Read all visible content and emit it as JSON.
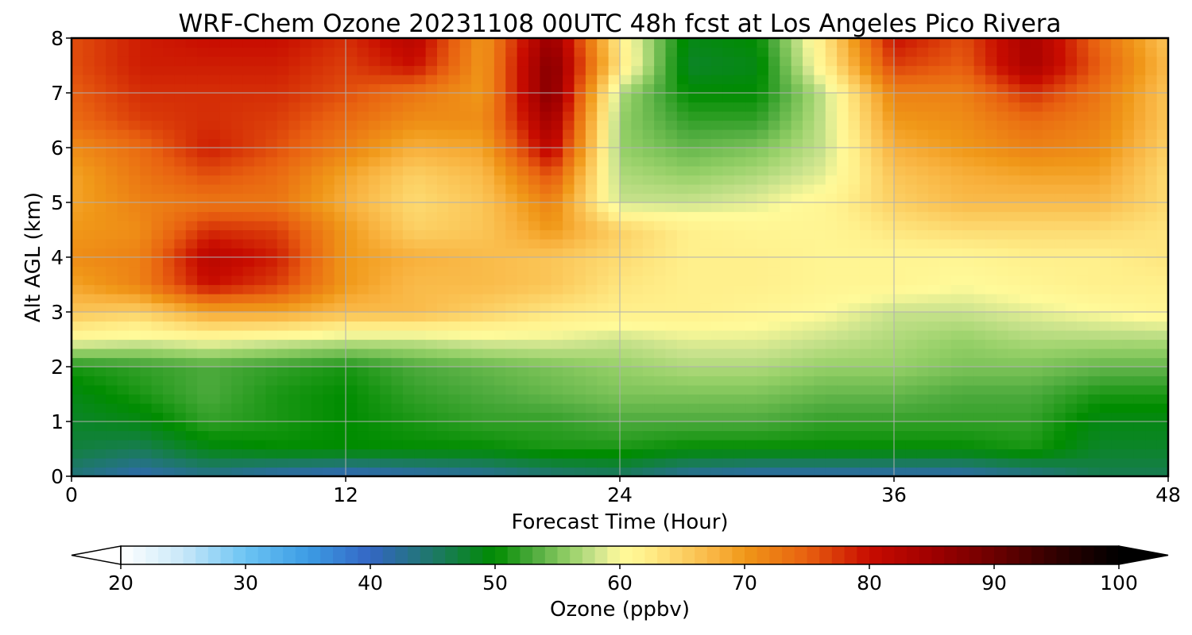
{
  "chart_data": {
    "type": "heatmap",
    "title": "WRF-Chem Ozone  20231108 00UTC 48h fcst at Los Angeles Pico Rivera",
    "xlabel": "Forecast Time (Hour)",
    "ylabel": "Alt AGL (km)",
    "xlim": [
      0,
      48
    ],
    "ylim": [
      0,
      8
    ],
    "xticks": [
      0,
      12,
      24,
      36,
      48
    ],
    "yticks": [
      0,
      1,
      2,
      3,
      4,
      5,
      6,
      7,
      8
    ],
    "grid": true,
    "x": [
      0,
      3,
      6,
      9,
      12,
      15,
      18,
      21,
      24,
      27,
      30,
      33,
      36,
      39,
      42,
      45,
      48
    ],
    "y": [
      0,
      0.5,
      1,
      1.5,
      2,
      2.5,
      3,
      3.5,
      4,
      4.5,
      5,
      5.5,
      6,
      6.5,
      7,
      7.5,
      8
    ],
    "z": [
      [
        44,
        41,
        43,
        41,
        40,
        41,
        42,
        44,
        45,
        42,
        41,
        41,
        41,
        41,
        43,
        46,
        46
      ],
      [
        47,
        46,
        49,
        50,
        50,
        50,
        50,
        51,
        51,
        50,
        50,
        50,
        50,
        50,
        51,
        48,
        48
      ],
      [
        48,
        49,
        52,
        51,
        50,
        51,
        52,
        52,
        53,
        53,
        53,
        52,
        52,
        52,
        52,
        49,
        49
      ],
      [
        49,
        51,
        53,
        51,
        50,
        52,
        53,
        54,
        55,
        55,
        55,
        54,
        54,
        53,
        53,
        51,
        51
      ],
      [
        51,
        52,
        53,
        52,
        51,
        53,
        54,
        55,
        56,
        57,
        57,
        56,
        56,
        55,
        55,
        54,
        54
      ],
      [
        60,
        59,
        60,
        59,
        58,
        58,
        59,
        59,
        58,
        59,
        59,
        58,
        57,
        56,
        57,
        57,
        57
      ],
      [
        66,
        65,
        69,
        69,
        67,
        67,
        65,
        63,
        62,
        62,
        61,
        60,
        58,
        58,
        59,
        60,
        61
      ],
      [
        69,
        72,
        80,
        77,
        70,
        67,
        67,
        66,
        63,
        62,
        62,
        61,
        61,
        60,
        61,
        62,
        62
      ],
      [
        71,
        72,
        82,
        79,
        70,
        68,
        67,
        66,
        64,
        62,
        62,
        61,
        61,
        61,
        62,
        62,
        63
      ],
      [
        70,
        71,
        78,
        77,
        70,
        65,
        66,
        70,
        65,
        62,
        61,
        61,
        63,
        64,
        64,
        64,
        63
      ],
      [
        69,
        72,
        73,
        73,
        68,
        64,
        66,
        72,
        58,
        58,
        59,
        61,
        65,
        67,
        67,
        67,
        64
      ],
      [
        69,
        73,
        76,
        74,
        69,
        65,
        67,
        76,
        57,
        56,
        57,
        59,
        66,
        68,
        69,
        69,
        64
      ],
      [
        71,
        74,
        79,
        76,
        72,
        68,
        69,
        82,
        56,
        54,
        55,
        58,
        68,
        70,
        72,
        71,
        65
      ],
      [
        74,
        77,
        78,
        77,
        74,
        71,
        71,
        85,
        56,
        52,
        52,
        58,
        70,
        71,
        74,
        72,
        66
      ],
      [
        75,
        78,
        78,
        78,
        76,
        73,
        70,
        88,
        57,
        50,
        50,
        58,
        72,
        72,
        78,
        73,
        66
      ],
      [
        76,
        79,
        79,
        79,
        77,
        80,
        70,
        88,
        63,
        48,
        49,
        62,
        77,
        75,
        84,
        75,
        67
      ],
      [
        76,
        79,
        80,
        80,
        78,
        82,
        70,
        86,
        62,
        49,
        50,
        63,
        80,
        76,
        84,
        74,
        66
      ]
    ],
    "colorbar": {
      "label": "Ozone  (ppbv)",
      "min": 20,
      "max": 100,
      "ticks": [
        20,
        30,
        40,
        50,
        60,
        70,
        80,
        90,
        100
      ],
      "extend": "both",
      "stops": [
        {
          "v": 20,
          "c": "#ffffff"
        },
        {
          "v": 25,
          "c": "#c8e8f8"
        },
        {
          "v": 30,
          "c": "#6cc4f4"
        },
        {
          "v": 35,
          "c": "#3c9ce4"
        },
        {
          "v": 40,
          "c": "#3466c4"
        },
        {
          "v": 45,
          "c": "#1e7868"
        },
        {
          "v": 50,
          "c": "#008c00"
        },
        {
          "v": 53,
          "c": "#4caa3c"
        },
        {
          "v": 56,
          "c": "#96d068"
        },
        {
          "v": 58,
          "c": "#c8e28c"
        },
        {
          "v": 60,
          "c": "#fffa9a"
        },
        {
          "v": 62,
          "c": "#fff08c"
        },
        {
          "v": 65,
          "c": "#fcd064"
        },
        {
          "v": 68,
          "c": "#f8b03c"
        },
        {
          "v": 70,
          "c": "#f09818"
        },
        {
          "v": 75,
          "c": "#e86010"
        },
        {
          "v": 80,
          "c": "#c80c00"
        },
        {
          "v": 85,
          "c": "#a00000"
        },
        {
          "v": 90,
          "c": "#6c0000"
        },
        {
          "v": 95,
          "c": "#300000"
        },
        {
          "v": 100,
          "c": "#000000"
        }
      ]
    }
  }
}
